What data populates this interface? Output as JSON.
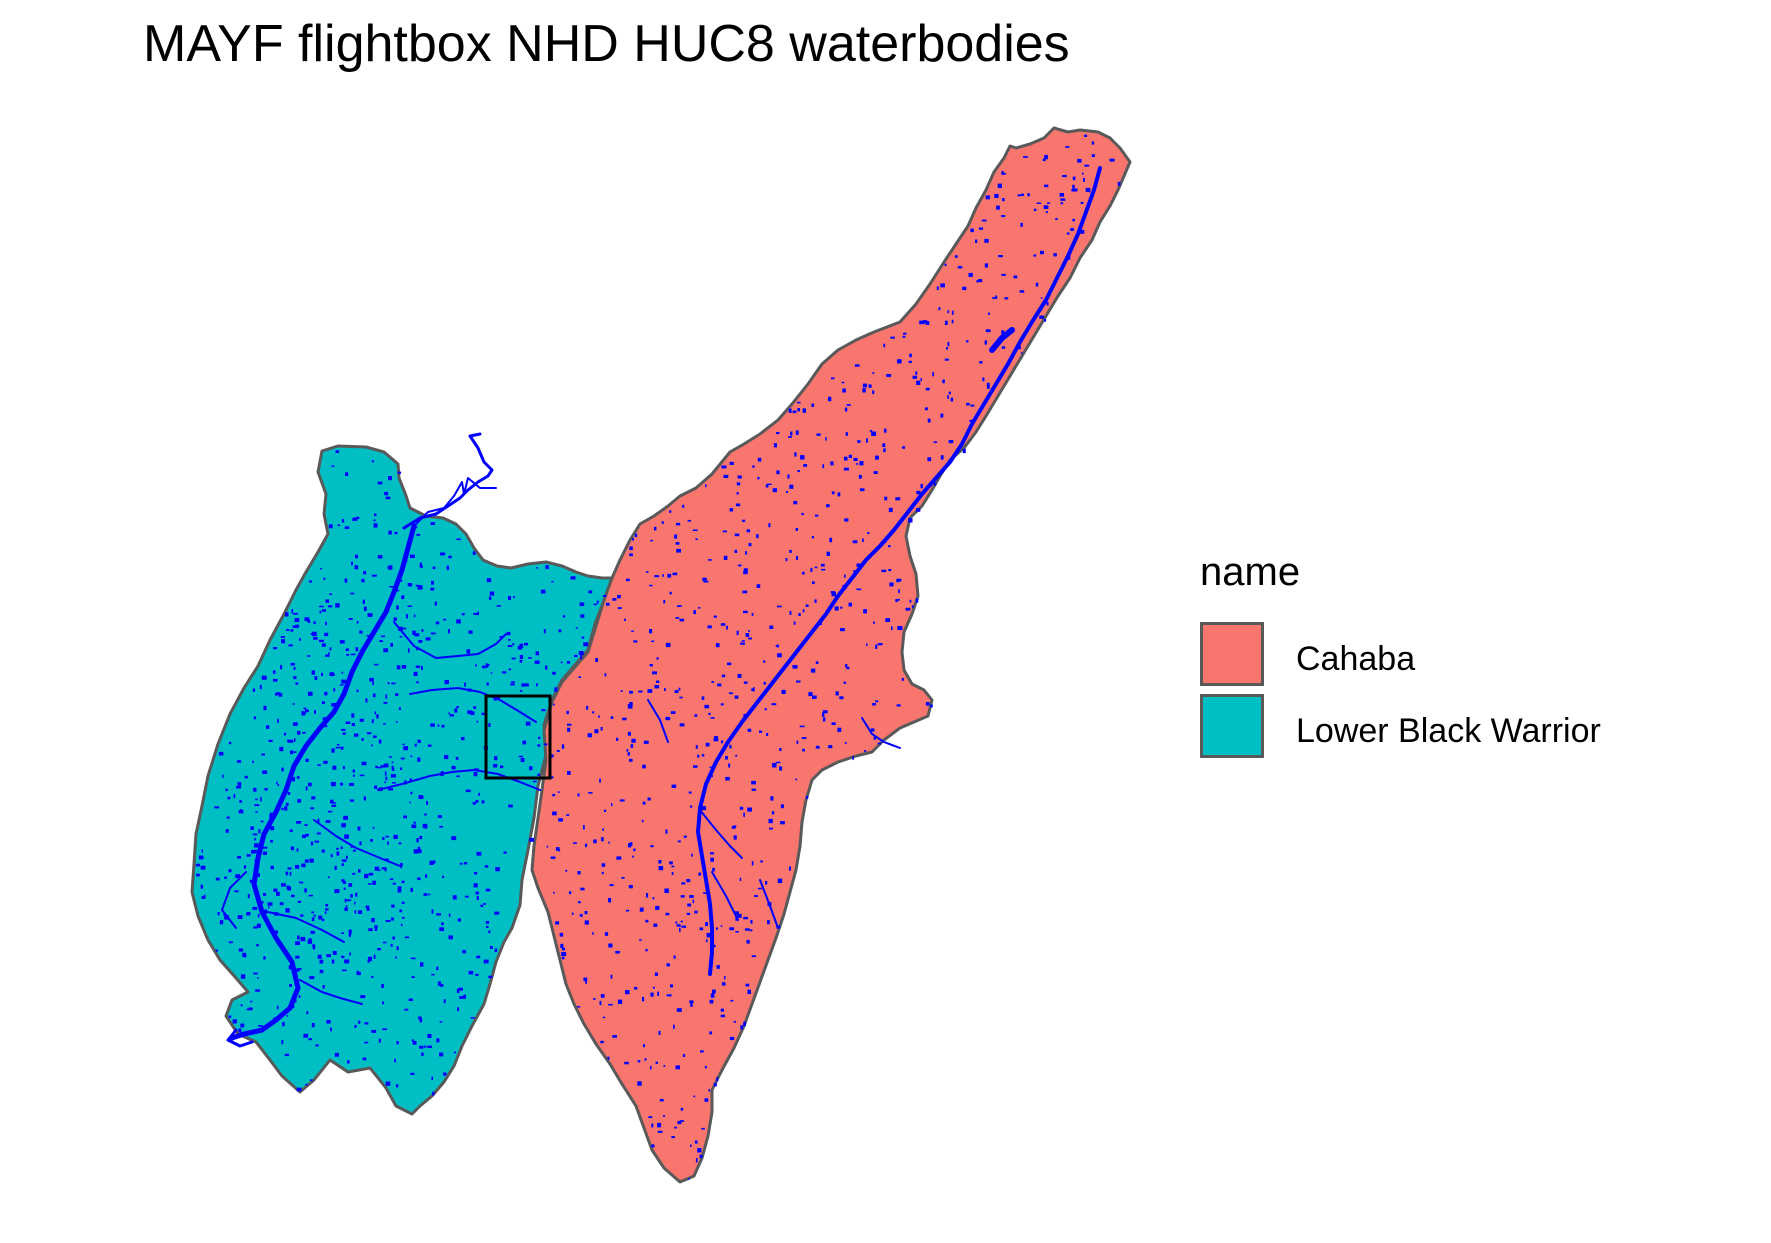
{
  "title": "MAYF flightbox NHD HUC8 waterbodies",
  "legend": {
    "title": "name",
    "items": [
      {
        "label": "Cahaba",
        "color": "#F8766D"
      },
      {
        "label": "Lower Black Warrior",
        "color": "#00BFC4"
      }
    ]
  },
  "map": {
    "polygon_outline_color": "#595959",
    "waterbody_color": "#0000FF",
    "flightbox_color": "#000000"
  }
}
